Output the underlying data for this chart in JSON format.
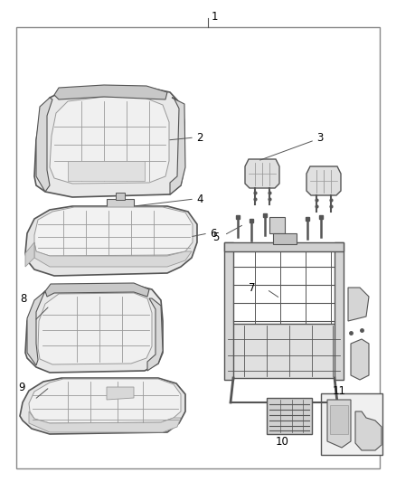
{
  "bg_color": "#ffffff",
  "border_color": "#888888",
  "line_color": "#666666",
  "light_gray": "#bbbbbb",
  "mid_gray": "#999999",
  "dark_gray": "#555555",
  "fill_light": "#e8e8e8",
  "fill_mid": "#d8d8d8",
  "fill_dark": "#c8c8c8",
  "label_fontsize": 8.5,
  "border": [
    0.04,
    0.035,
    0.93,
    0.91
  ]
}
